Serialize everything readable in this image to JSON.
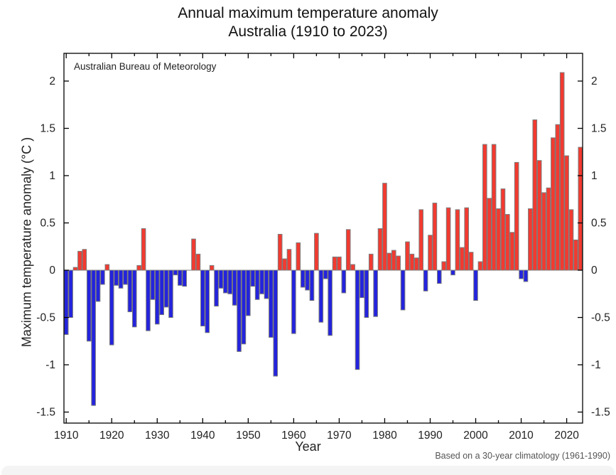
{
  "title": {
    "line1": "Annual maximum temperature anomaly",
    "line2": "Australia (1910 to 2023)"
  },
  "annotation": "Australian Bureau of Meteorology",
  "caption": "Based on a 30-year climatology (1961-1990)",
  "xlabel": "Year",
  "ylabel": "Maximum temperature anomaly (°C )",
  "colors": {
    "positive_bar": "#f23a30",
    "negative_bar": "#2323dd",
    "bar_outline": "#7d7d7d",
    "axis": "#000000",
    "caption_text": "#555555"
  },
  "chart_data": {
    "type": "bar",
    "title": "Annual maximum temperature anomaly Australia (1910 to 2023)",
    "xlabel": "Year",
    "ylabel": "Maximum temperature anomaly (°C )",
    "baseline": 0,
    "ylim": [
      -1.62,
      2.28
    ],
    "xlim": [
      1910,
      2024
    ],
    "yticks": [
      2,
      1.5,
      1,
      0.5,
      0,
      -0.5,
      -1,
      -1.5
    ],
    "ytick_labels": [
      "2",
      "1.5",
      "1",
      "0.5",
      "0",
      "-0.5",
      "-1",
      "-1.5"
    ],
    "xticks": [
      1910,
      1920,
      1930,
      1940,
      1950,
      1960,
      1970,
      1980,
      1990,
      2000,
      2010,
      2020
    ],
    "minor_xtick_step": 5,
    "legend": "none",
    "grid": false,
    "years": [
      1910,
      1911,
      1912,
      1913,
      1914,
      1915,
      1916,
      1917,
      1918,
      1919,
      1920,
      1921,
      1922,
      1923,
      1924,
      1925,
      1926,
      1927,
      1928,
      1929,
      1930,
      1931,
      1932,
      1933,
      1934,
      1935,
      1936,
      1937,
      1938,
      1939,
      1940,
      1941,
      1942,
      1943,
      1944,
      1945,
      1946,
      1947,
      1948,
      1949,
      1950,
      1951,
      1952,
      1953,
      1954,
      1955,
      1956,
      1957,
      1958,
      1959,
      1960,
      1961,
      1962,
      1963,
      1964,
      1965,
      1966,
      1967,
      1968,
      1969,
      1970,
      1971,
      1972,
      1973,
      1974,
      1975,
      1976,
      1977,
      1978,
      1979,
      1980,
      1981,
      1982,
      1983,
      1984,
      1985,
      1986,
      1987,
      1988,
      1989,
      1990,
      1991,
      1992,
      1993,
      1994,
      1995,
      1996,
      1997,
      1998,
      1999,
      2000,
      2001,
      2002,
      2003,
      2004,
      2005,
      2006,
      2007,
      2008,
      2009,
      2010,
      2011,
      2012,
      2013,
      2014,
      2015,
      2016,
      2017,
      2018,
      2019,
      2020,
      2021,
      2022,
      2023
    ],
    "values": [
      -0.68,
      -0.5,
      0.03,
      0.2,
      0.22,
      -0.75,
      -1.43,
      -0.33,
      -0.15,
      0.06,
      -0.79,
      -0.16,
      -0.19,
      -0.15,
      -0.44,
      -0.6,
      0.05,
      0.44,
      -0.64,
      -0.31,
      -0.57,
      -0.47,
      -0.39,
      -0.5,
      -0.05,
      -0.16,
      -0.17,
      0.0,
      0.33,
      0.17,
      -0.59,
      -0.66,
      0.05,
      -0.38,
      -0.19,
      -0.24,
      -0.25,
      -0.37,
      -0.86,
      -0.78,
      -0.48,
      -0.17,
      -0.31,
      -0.25,
      -0.3,
      -0.71,
      -1.12,
      0.38,
      0.12,
      0.22,
      -0.67,
      0.29,
      -0.18,
      -0.21,
      -0.32,
      0.39,
      -0.55,
      -0.09,
      -0.69,
      0.14,
      0.14,
      -0.24,
      0.43,
      0.06,
      -1.05,
      -0.29,
      -0.5,
      0.17,
      -0.49,
      0.44,
      0.92,
      0.18,
      0.21,
      0.15,
      -0.42,
      0.3,
      0.17,
      0.13,
      0.64,
      -0.22,
      0.37,
      0.71,
      -0.14,
      0.09,
      0.66,
      -0.05,
      0.64,
      0.24,
      0.66,
      0.19,
      -0.32,
      0.09,
      1.33,
      0.76,
      1.33,
      0.65,
      0.86,
      0.59,
      0.4,
      1.14,
      -0.09,
      -0.12,
      0.65,
      1.59,
      1.16,
      0.82,
      0.87,
      1.4,
      1.54,
      2.09,
      1.21,
      0.64,
      0.32,
      1.3
    ]
  }
}
